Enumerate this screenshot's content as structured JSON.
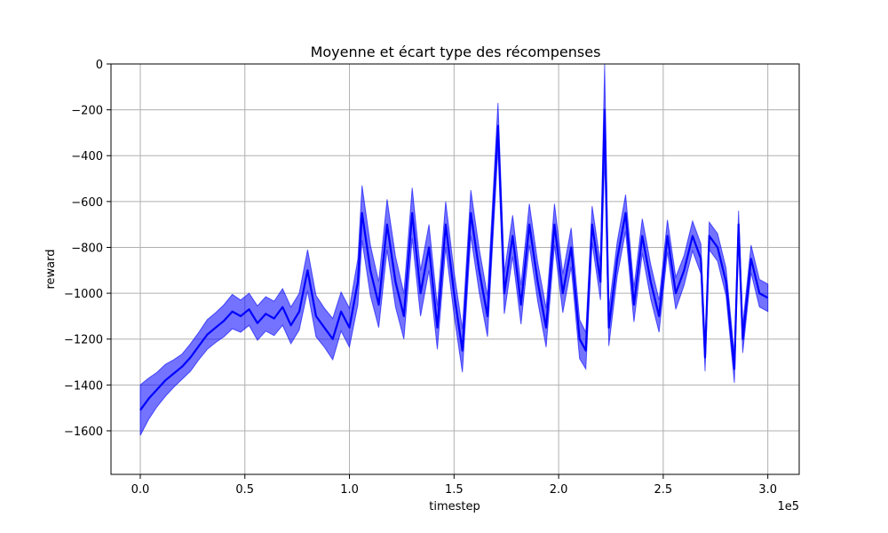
{
  "chart_data": {
    "type": "line",
    "title": "Moyenne et écart type des récompenses",
    "xlabel": "timestep",
    "ylabel": "reward",
    "x_scale_label": "1e5",
    "xlim": [
      -0.14,
      3.15
    ],
    "ylim": [
      -1790,
      0
    ],
    "x_ticks": [
      0.0,
      0.5,
      1.0,
      1.5,
      2.0,
      2.5,
      3.0
    ],
    "x_tick_labels": [
      "0.0",
      "0.5",
      "1.0",
      "1.5",
      "2.0",
      "2.5",
      "3.0"
    ],
    "y_ticks": [
      0,
      -200,
      -400,
      -600,
      -800,
      -1000,
      -1200,
      -1400,
      -1600
    ],
    "y_tick_labels": [
      "0",
      "−200",
      "−400",
      "−600",
      "−800",
      "−1000",
      "−1200",
      "−1400",
      "−1600"
    ],
    "grid": true,
    "colors": {
      "mean": "#0000ff",
      "band": "#0000ff",
      "grid": "#b0b0b0"
    },
    "series": [
      {
        "x": [
          0.0,
          0.04,
          0.08,
          0.12,
          0.16,
          0.2,
          0.24,
          0.28,
          0.32,
          0.36,
          0.4,
          0.44,
          0.48,
          0.52,
          0.56,
          0.6,
          0.64,
          0.68,
          0.72,
          0.76,
          0.8,
          0.84,
          0.88,
          0.92,
          0.96,
          1.0,
          1.04,
          1.06,
          1.1,
          1.14,
          1.18,
          1.22,
          1.26,
          1.3,
          1.34,
          1.38,
          1.42,
          1.46,
          1.5,
          1.54,
          1.58,
          1.62,
          1.66,
          1.71,
          1.74,
          1.78,
          1.82,
          1.86,
          1.9,
          1.94,
          1.98,
          2.02,
          2.06,
          2.1,
          2.13,
          2.16,
          2.2,
          2.22,
          2.24,
          2.28,
          2.32,
          2.36,
          2.4,
          2.44,
          2.48,
          2.52,
          2.56,
          2.6,
          2.64,
          2.68,
          2.7,
          2.72,
          2.76,
          2.8,
          2.84,
          2.86,
          2.88,
          2.92,
          2.96,
          3.0
        ],
        "mean": [
          -1510,
          -1460,
          -1420,
          -1380,
          -1350,
          -1320,
          -1280,
          -1230,
          -1180,
          -1150,
          -1120,
          -1080,
          -1100,
          -1070,
          -1130,
          -1090,
          -1110,
          -1060,
          -1140,
          -1080,
          -900,
          -1100,
          -1150,
          -1200,
          -1080,
          -1150,
          -950,
          -650,
          -900,
          -1050,
          -700,
          -950,
          -1100,
          -650,
          -1000,
          -800,
          -1150,
          -700,
          -1000,
          -1250,
          -650,
          -900,
          -1100,
          -270,
          -1000,
          -750,
          -1050,
          -700,
          -950,
          -1150,
          -700,
          -1000,
          -800,
          -1200,
          -1250,
          -700,
          -950,
          -200,
          -1150,
          -850,
          -650,
          -1050,
          -750,
          -950,
          -1100,
          -750,
          -1000,
          -900,
          -750,
          -850,
          -1280,
          -750,
          -800,
          -950,
          -1330,
          -700,
          -1200,
          -850,
          -1000,
          -1020
        ],
        "std": [
          110,
          90,
          75,
          70,
          60,
          55,
          60,
          60,
          65,
          65,
          70,
          75,
          70,
          70,
          75,
          75,
          75,
          80,
          80,
          80,
          90,
          90,
          85,
          90,
          85,
          85,
          100,
          120,
          110,
          100,
          110,
          110,
          100,
          110,
          100,
          100,
          95,
          100,
          95,
          95,
          100,
          95,
          90,
          100,
          90,
          90,
          85,
          90,
          85,
          85,
          90,
          85,
          85,
          85,
          80,
          80,
          80,
          200,
          80,
          75,
          80,
          75,
          75,
          75,
          70,
          70,
          70,
          65,
          65,
          65,
          60,
          60,
          60,
          60,
          60,
          60,
          60,
          60,
          60,
          60
        ]
      }
    ]
  }
}
